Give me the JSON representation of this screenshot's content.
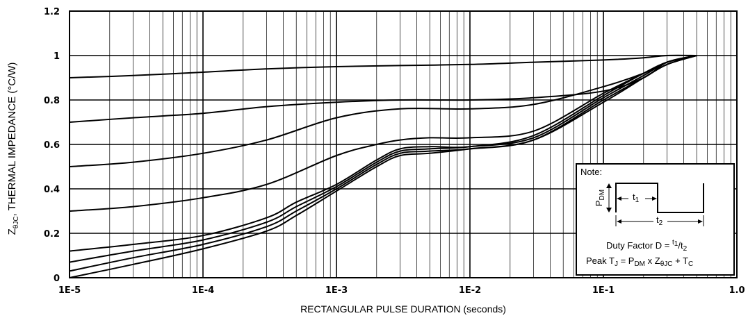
{
  "chart_data": {
    "type": "line",
    "title": "",
    "xlabel": "RECTANGULAR PULSE DURATION (seconds)",
    "ylabel": "THERMAL IMPEDANCE (°C/W)",
    "ylabel_symbol": "Z",
    "ylabel_subscript": "θJC",
    "x_scale": "log",
    "xlim": [
      1e-05,
      1
    ],
    "ylim": [
      0,
      1.2
    ],
    "x_tick_labels": [
      "1E-5",
      "1E-4",
      "1E-3",
      "1E-2",
      "1E-1",
      "1.0"
    ],
    "y_ticks": [
      0,
      0.2,
      0.4,
      0.6,
      0.8,
      1,
      1.2
    ],
    "y_tick_labels": [
      "0",
      "0.2",
      "0.4",
      "0.6",
      "0.8",
      "1",
      "1.2"
    ],
    "grid": true,
    "series": [
      {
        "x": [
          1e-05,
          3e-05,
          0.0001,
          0.0003,
          0.001,
          0.003,
          0.01,
          0.03,
          0.1,
          0.2,
          0.3,
          0.5
        ],
        "y": [
          0.9,
          0.91,
          0.925,
          0.94,
          0.95,
          0.955,
          0.96,
          0.97,
          0.98,
          0.99,
          1.0,
          1.0
        ]
      },
      {
        "x": [
          1e-05,
          3e-05,
          0.0001,
          0.0003,
          0.001,
          0.003,
          0.01,
          0.03,
          0.1,
          0.2,
          0.3,
          0.5
        ],
        "y": [
          0.7,
          0.72,
          0.74,
          0.77,
          0.79,
          0.8,
          0.8,
          0.81,
          0.84,
          0.9,
          0.97,
          1.0
        ]
      },
      {
        "x": [
          1e-05,
          3e-05,
          0.0001,
          0.0003,
          0.001,
          0.003,
          0.01,
          0.03,
          0.1,
          0.2,
          0.3,
          0.5
        ],
        "y": [
          0.5,
          0.52,
          0.56,
          0.62,
          0.72,
          0.76,
          0.76,
          0.78,
          0.86,
          0.92,
          0.97,
          1.0
        ]
      },
      {
        "x": [
          1e-05,
          3e-05,
          0.0001,
          0.0003,
          0.001,
          0.002,
          0.003,
          0.005,
          0.01,
          0.03,
          0.1,
          0.2,
          0.3,
          0.5
        ],
        "y": [
          0.3,
          0.32,
          0.36,
          0.42,
          0.55,
          0.6,
          0.62,
          0.63,
          0.63,
          0.66,
          0.83,
          0.92,
          0.97,
          1.0
        ]
      },
      {
        "x": [
          1e-05,
          3e-05,
          0.0001,
          0.0003,
          0.0005,
          0.001,
          0.002,
          0.003,
          0.005,
          0.01,
          0.03,
          0.1,
          0.2,
          0.3,
          0.5
        ],
        "y": [
          0.12,
          0.15,
          0.19,
          0.27,
          0.34,
          0.42,
          0.53,
          0.58,
          0.59,
          0.59,
          0.64,
          0.82,
          0.92,
          0.97,
          1.0
        ]
      },
      {
        "x": [
          1e-05,
          3e-05,
          0.0001,
          0.0003,
          0.0005,
          0.001,
          0.002,
          0.003,
          0.005,
          0.01,
          0.03,
          0.1,
          0.2,
          0.3,
          0.5
        ],
        "y": [
          0.07,
          0.12,
          0.17,
          0.25,
          0.32,
          0.41,
          0.52,
          0.57,
          0.58,
          0.59,
          0.63,
          0.81,
          0.91,
          0.97,
          1.0
        ]
      },
      {
        "x": [
          1e-05,
          3e-05,
          0.0001,
          0.0003,
          0.0005,
          0.001,
          0.002,
          0.003,
          0.005,
          0.01,
          0.03,
          0.1,
          0.2,
          0.3,
          0.5
        ],
        "y": [
          0.03,
          0.09,
          0.15,
          0.23,
          0.3,
          0.4,
          0.51,
          0.56,
          0.57,
          0.58,
          0.62,
          0.8,
          0.9,
          0.96,
          1.0
        ]
      },
      {
        "x": [
          1e-05,
          3e-05,
          0.0001,
          0.0003,
          0.0005,
          0.001,
          0.002,
          0.003,
          0.005,
          0.01,
          0.03,
          0.1,
          0.2,
          0.3,
          0.5
        ],
        "y": [
          0.0,
          0.06,
          0.13,
          0.21,
          0.28,
          0.39,
          0.5,
          0.55,
          0.56,
          0.58,
          0.62,
          0.79,
          0.9,
          0.96,
          1.0
        ]
      }
    ]
  },
  "note": {
    "title": "Note:",
    "pdm_main": "P",
    "pdm_sub": "DM",
    "t1_main": "t",
    "t1_sub": "1",
    "t2_main": "t",
    "t2_sub": "2",
    "duty_prefix": "Duty Factor D = ",
    "duty_t1_sup": "t",
    "duty_t1_sub": "1",
    "duty_slash": "/t",
    "duty_t2_sub": "2",
    "peak_prefix": "Peak T",
    "peak_tj_sub": "J",
    "peak_eq": " = P",
    "peak_pdm_sub": "DM",
    "peak_x": " x Z",
    "peak_z_sub": "θJC",
    "peak_plus": " + T",
    "peak_tc_sub": "C"
  }
}
